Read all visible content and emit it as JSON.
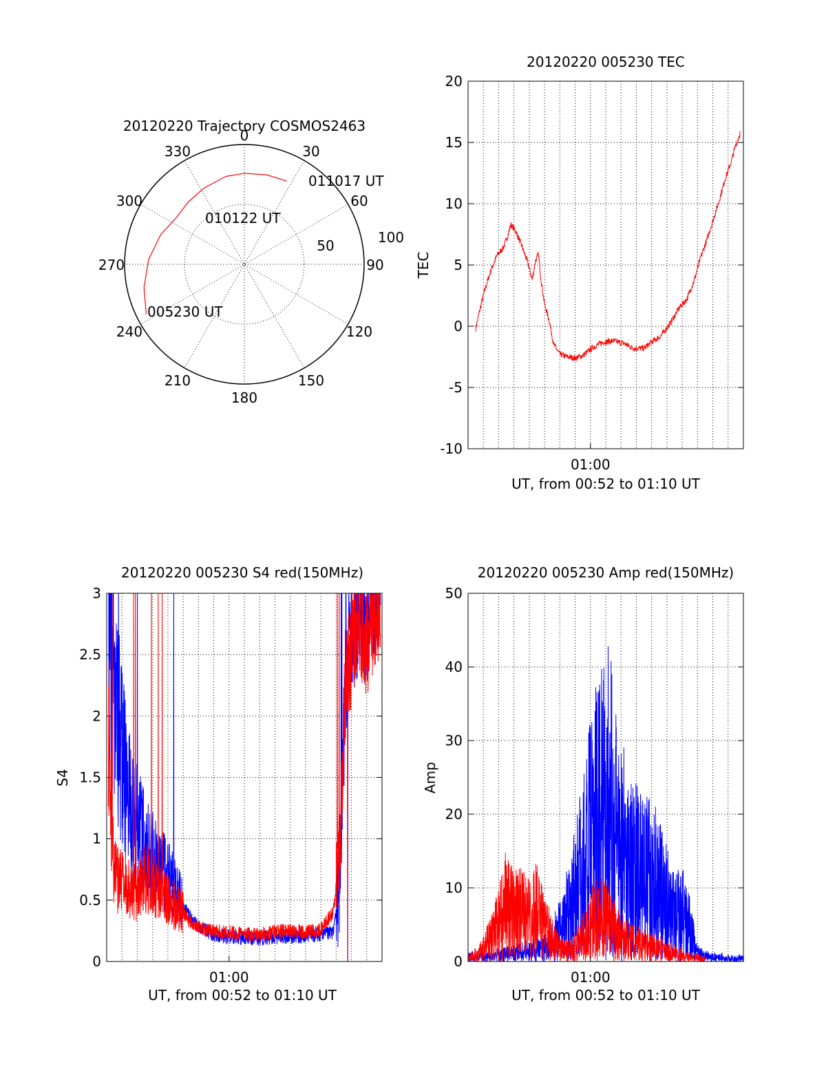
{
  "chart_data": [
    {
      "type": "polar",
      "title": "20120220 Trajectory COSMOS2463",
      "azimuth_labels": [
        "0",
        "30",
        "60",
        "90",
        "120",
        "150",
        "180",
        "210",
        "240",
        "270",
        "300",
        "330"
      ],
      "radial_labels": [
        "50",
        "100"
      ],
      "rlim": [
        0,
        100
      ],
      "grid": true,
      "series": [
        {
          "color": "#ff0000",
          "azimuth_deg": [
            243,
            257,
            273,
            290,
            304,
            318,
            332,
            348,
            0,
            14,
            27
          ],
          "radius": [
            92,
            86,
            80,
            74,
            69,
            70,
            72,
            75,
            76,
            77,
            78
          ]
        }
      ],
      "annotations": [
        {
          "text": "011017 UT",
          "azimuth_deg": 27,
          "radius": 78
        },
        {
          "text": "010122 UT",
          "azimuth_deg": 304,
          "radius": 69
        },
        {
          "text": "005230 UT",
          "azimuth_deg": 243,
          "radius": 92
        }
      ]
    },
    {
      "type": "line",
      "title": "20120220 005230 TEC",
      "xlabel": "UT, from 00:52 to 01:10 UT",
      "ylabel": "TEC",
      "xlim": [
        0,
        18
      ],
      "ylim": [
        -10,
        20
      ],
      "xticks": [
        {
          "x": 8,
          "label": "01:00"
        }
      ],
      "yticks": [
        -10,
        -5,
        0,
        5,
        10,
        15,
        20
      ],
      "grid": true,
      "series": [
        {
          "color": "#ff0000",
          "x": [
            0.5,
            0.8,
            1.1,
            1.5,
            1.9,
            2.3,
            2.6,
            2.8,
            3.1,
            3.5,
            3.9,
            4.2,
            4.4,
            4.6,
            4.8,
            5.0,
            5.3,
            5.6,
            6.0,
            6.5,
            7.0,
            7.5,
            7.8,
            8.2,
            8.8,
            9.5,
            10.2,
            10.8,
            11.5,
            12.0,
            12.6,
            13.2,
            13.8,
            14.3,
            14.8,
            15.2,
            15.6,
            16.0,
            16.4,
            16.8,
            17.2,
            17.5,
            17.8
          ],
          "y": [
            -0.2,
            1.5,
            3.0,
            4.6,
            5.8,
            6.4,
            7.4,
            8.3,
            7.8,
            6.6,
            5.2,
            3.8,
            5.3,
            5.9,
            3.5,
            1.8,
            0.5,
            -1.5,
            -2.3,
            -2.5,
            -2.6,
            -2.4,
            -2.1,
            -1.7,
            -1.3,
            -1.2,
            -1.4,
            -1.8,
            -1.8,
            -1.3,
            -0.8,
            0.2,
            1.5,
            2.2,
            3.8,
            5.6,
            7.0,
            8.6,
            10.2,
            12.0,
            13.4,
            14.8,
            15.8
          ]
        }
      ]
    },
    {
      "type": "line",
      "title": "20120220 005230 S4 red(150MHz)",
      "xlabel": "UT, from 00:52 to 01:10 UT",
      "ylabel": "S4",
      "xlim": [
        0,
        18
      ],
      "ylim": [
        0,
        3
      ],
      "xticks": [
        {
          "x": 8,
          "label": "01:00"
        }
      ],
      "yticks": [
        0,
        0.5,
        1,
        1.5,
        2,
        2.5,
        3
      ],
      "ytick_labels": [
        "0",
        "0.5",
        "1",
        "1.5",
        "2",
        "2.5",
        "3"
      ],
      "grid": true,
      "series": [
        {
          "color": "#0000ff",
          "x": [
            0.1,
            0.5,
            0.9,
            1.3,
            1.7,
            2.1,
            2.5,
            3.0,
            3.5,
            4.0,
            4.5,
            5.0,
            5.5,
            6.0,
            6.5,
            7.0,
            7.5,
            8.0,
            9.0,
            10.0,
            11.0,
            12.0,
            13.0,
            14.0,
            14.8,
            15.2,
            15.4,
            15.6,
            16.0,
            16.5,
            17.0,
            17.5,
            17.9
          ],
          "y": [
            2.9,
            2.3,
            1.8,
            1.4,
            1.2,
            1.1,
            0.95,
            0.85,
            0.75,
            0.7,
            0.6,
            0.45,
            0.35,
            0.28,
            0.25,
            0.22,
            0.21,
            0.2,
            0.19,
            0.19,
            0.2,
            0.2,
            0.21,
            0.22,
            0.24,
            0.6,
            1.4,
            2.2,
            2.6,
            2.8,
            2.7,
            2.9,
            3.0
          ]
        },
        {
          "color": "#ff0000",
          "x": [
            0.1,
            0.5,
            0.9,
            1.3,
            1.7,
            2.1,
            2.5,
            3.0,
            3.5,
            4.0,
            4.5,
            5.0,
            5.5,
            6.0,
            6.5,
            7.0,
            7.5,
            8.0,
            9.0,
            10.0,
            11.0,
            12.0,
            13.0,
            14.0,
            14.8,
            15.2,
            15.4,
            15.6,
            16.0,
            16.5,
            17.0,
            17.5,
            17.9
          ],
          "y": [
            1.9,
            0.7,
            0.65,
            0.6,
            0.55,
            0.6,
            0.7,
            0.65,
            0.55,
            0.5,
            0.45,
            0.4,
            0.32,
            0.28,
            0.26,
            0.25,
            0.24,
            0.24,
            0.22,
            0.22,
            0.24,
            0.25,
            0.24,
            0.26,
            0.4,
            0.8,
            1.5,
            2.3,
            2.5,
            2.7,
            2.6,
            2.8,
            2.9
          ]
        }
      ]
    },
    {
      "type": "line",
      "title": "20120220 005230 Amp red(150MHz)",
      "xlabel": "UT, from 00:52 to 01:10 UT",
      "ylabel": "Amp",
      "xlim": [
        0,
        18
      ],
      "ylim": [
        0,
        50
      ],
      "xticks": [
        {
          "x": 8,
          "label": "01:00"
        }
      ],
      "yticks": [
        0,
        10,
        20,
        30,
        40,
        50
      ],
      "grid": true,
      "series": [
        {
          "color": "#0000ff",
          "x": [
            0.0,
            1.0,
            2.0,
            3.0,
            4.0,
            5.0,
            5.5,
            6.0,
            6.5,
            7.0,
            7.5,
            8.0,
            8.5,
            9.0,
            9.5,
            10.0,
            10.5,
            11.0,
            11.5,
            12.0,
            12.5,
            13.0,
            13.5,
            14.0,
            14.5,
            15.0,
            15.5,
            16.0,
            17.0,
            18.0
          ],
          "y": [
            1.0,
            1.2,
            1.5,
            2.0,
            2.5,
            3.5,
            5.0,
            8.0,
            12.0,
            18.0,
            24.0,
            30.0,
            36.0,
            42.0,
            35.0,
            28.0,
            24.0,
            22.0,
            20.0,
            22.0,
            18.0,
            14.0,
            11.0,
            12.0,
            8.0,
            2.0,
            1.2,
            1.0,
            0.8,
            0.8
          ]
        },
        {
          "color": "#ff0000",
          "x": [
            0.0,
            1.0,
            2.0,
            2.5,
            3.0,
            3.5,
            4.0,
            4.5,
            5.0,
            5.5,
            6.0,
            6.5,
            7.0,
            7.5,
            8.0,
            8.5,
            9.0,
            9.5,
            10.0,
            10.5,
            11.0,
            11.5,
            12.0,
            12.5,
            13.0,
            13.5,
            14.0,
            14.5,
            15.0,
            15.5
          ],
          "y": [
            0.5,
            3.0,
            9.0,
            14.0,
            11.0,
            12.0,
            10.0,
            13.0,
            8.0,
            6.0,
            3.0,
            2.5,
            4.0,
            6.0,
            9.0,
            12.0,
            10.0,
            8.0,
            6.0,
            5.0,
            4.5,
            4.0,
            3.5,
            3.0,
            2.5,
            2.0,
            1.5,
            1.0,
            0.8,
            0.5
          ]
        }
      ]
    }
  ]
}
